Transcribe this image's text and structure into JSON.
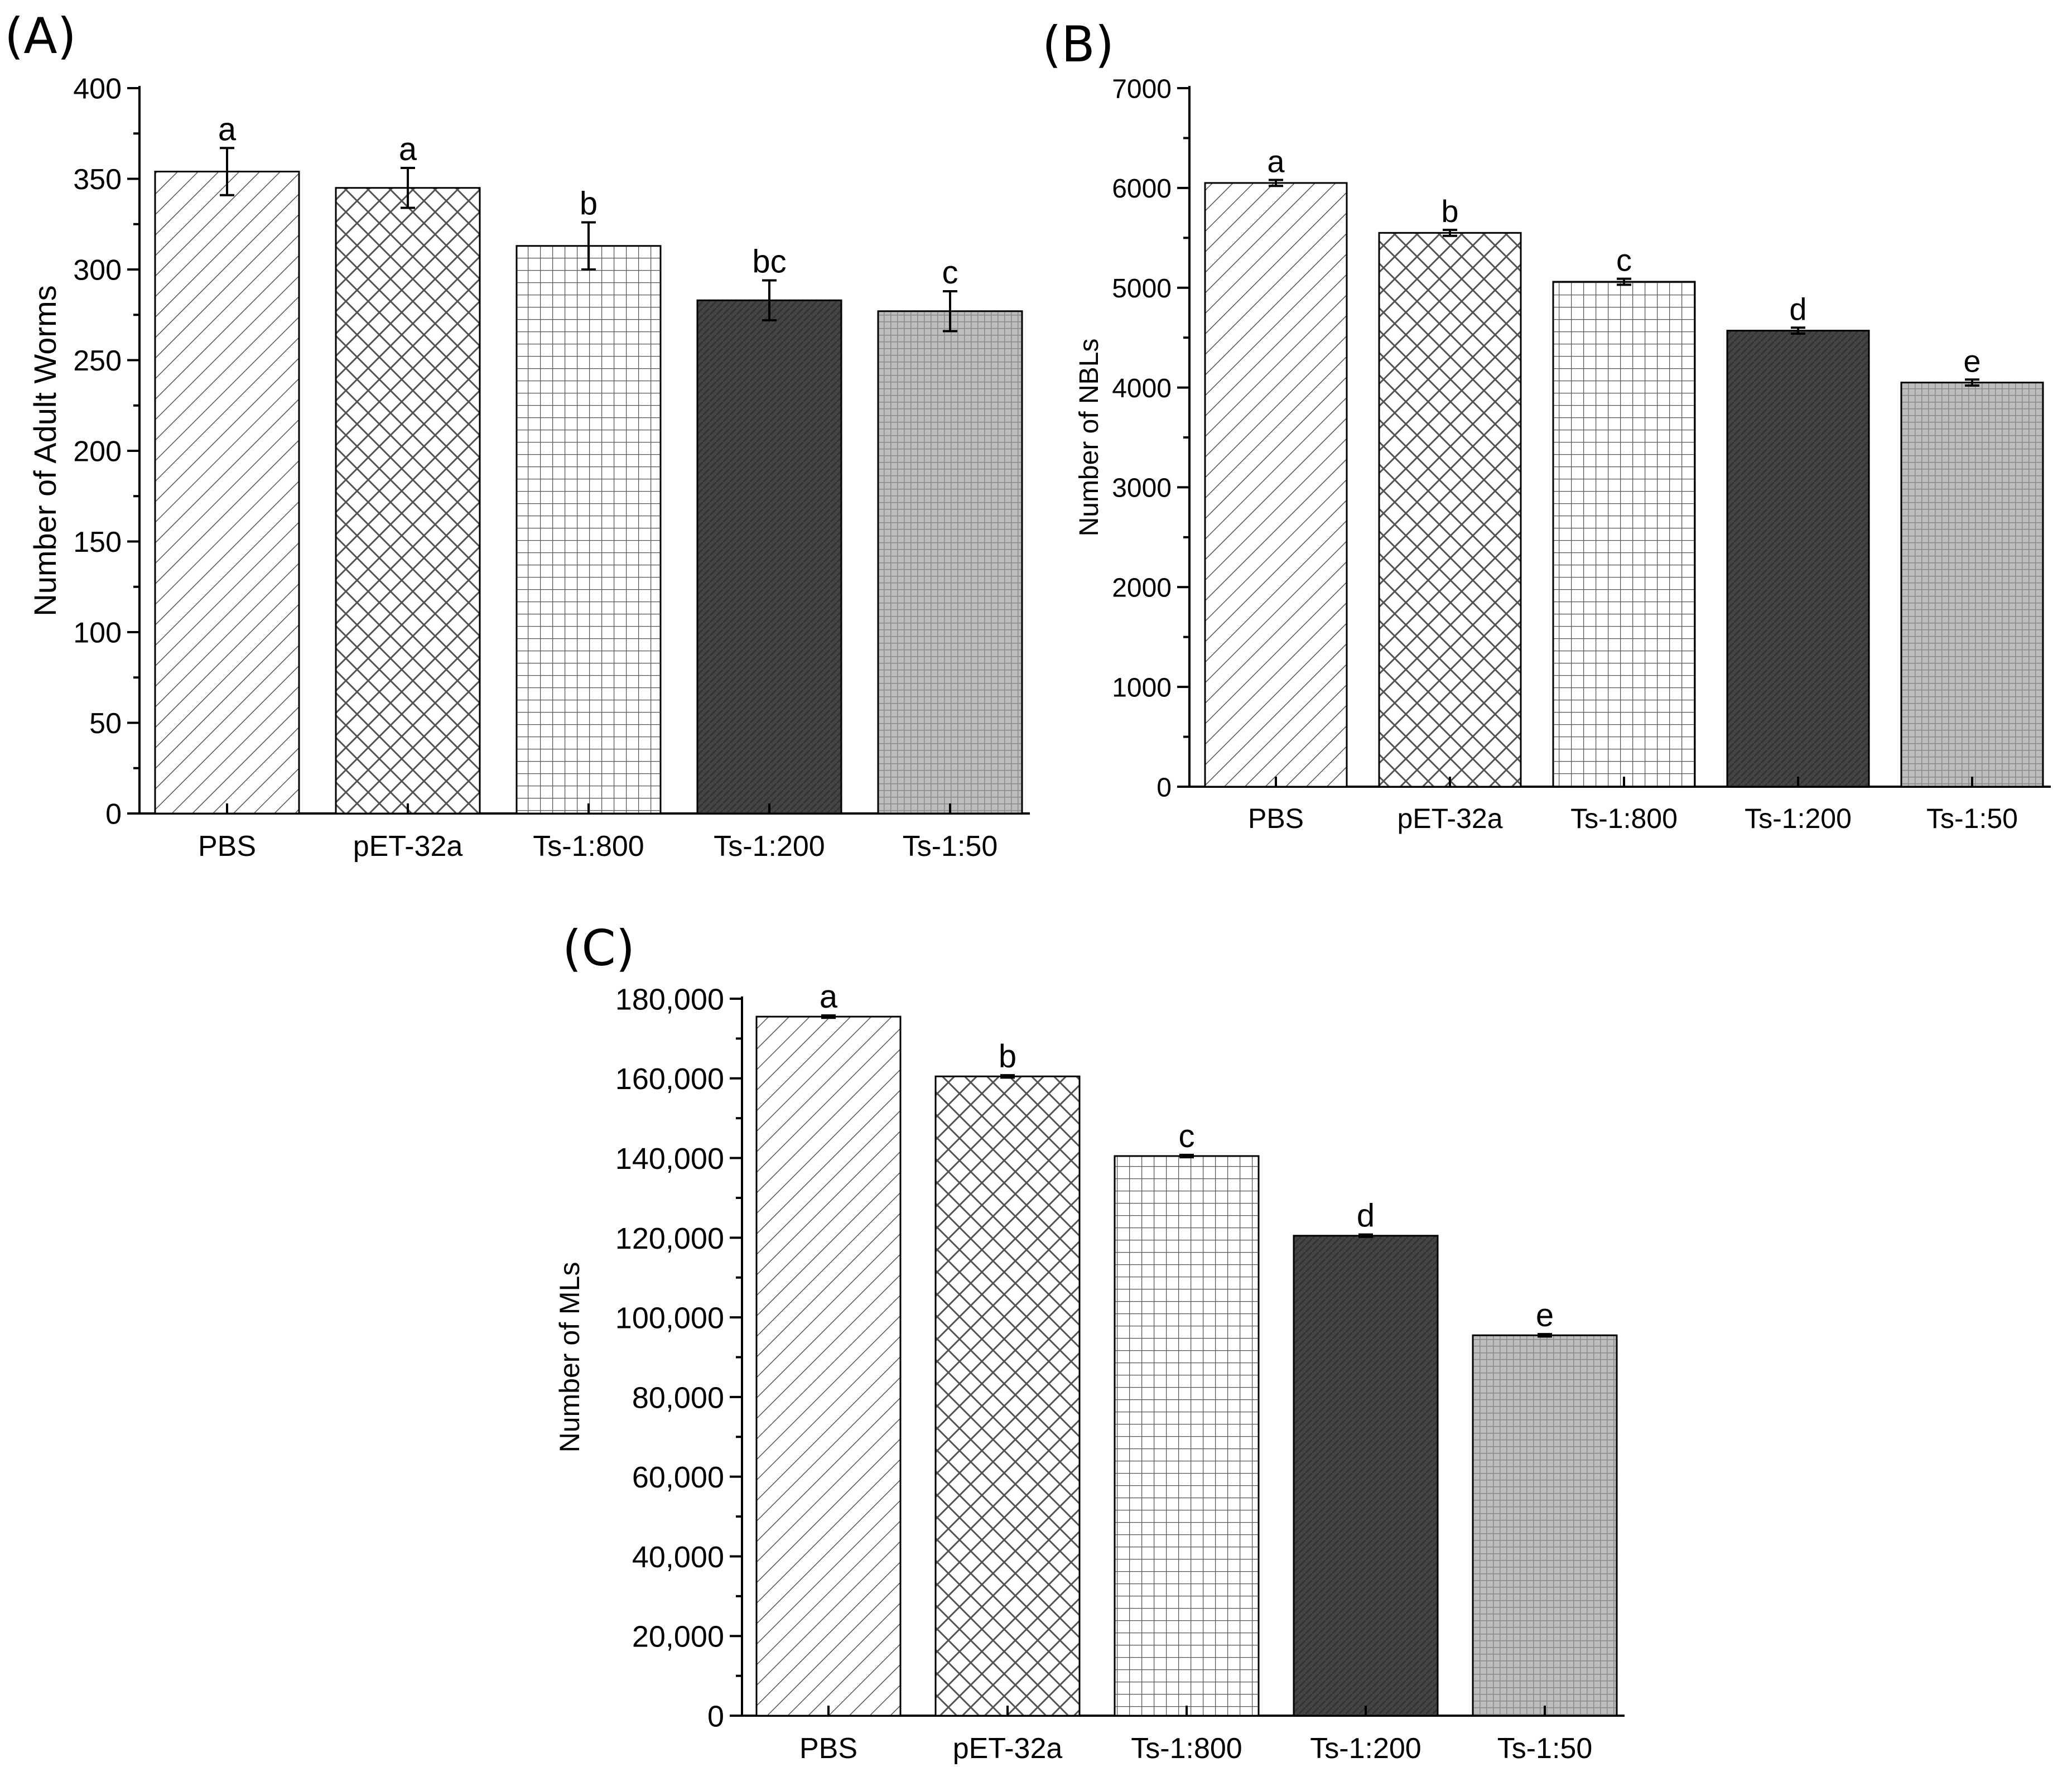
{
  "figure": {
    "panels": [
      {
        "label": "(A)"
      },
      {
        "label": "(B)"
      },
      {
        "label": "(C)"
      }
    ]
  },
  "chart_data": [
    {
      "type": "bar",
      "title": "",
      "xlabel": "",
      "ylabel": "Number of Adult Worms",
      "categories": [
        "PBS",
        "pET-32a",
        "Ts-1:800",
        "Ts-1:200",
        "Ts-1:50"
      ],
      "values": [
        354,
        345,
        313,
        283,
        277
      ],
      "errors": [
        13,
        11,
        13,
        11,
        11
      ],
      "significance": [
        "a",
        "a",
        "b",
        "bc",
        "c"
      ],
      "ylim": [
        0,
        400
      ],
      "yticks": [
        0,
        50,
        100,
        150,
        200,
        250,
        300,
        350,
        400
      ],
      "ytick_labels": [
        "0",
        "50",
        "100",
        "150",
        "200",
        "250",
        "300",
        "350",
        "400"
      ],
      "patterns": [
        "diag",
        "cross",
        "grid",
        "dark",
        "mesh"
      ]
    },
    {
      "type": "bar",
      "title": "",
      "xlabel": "",
      "ylabel": "Number of NBLs",
      "categories": [
        "PBS",
        "pET-32a",
        "Ts-1:800",
        "Ts-1:200",
        "Ts-1:50"
      ],
      "values": [
        6050,
        5550,
        5060,
        4570,
        4050
      ],
      "errors": [
        30,
        30,
        30,
        30,
        30
      ],
      "significance": [
        "a",
        "b",
        "c",
        "d",
        "e"
      ],
      "ylim": [
        0,
        7000
      ],
      "yticks": [
        0,
        1000,
        2000,
        3000,
        4000,
        5000,
        6000,
        7000
      ],
      "ytick_labels": [
        "0",
        "1000",
        "2000",
        "3000",
        "4000",
        "5000",
        "6000",
        "7000"
      ],
      "patterns": [
        "diag",
        "cross",
        "grid",
        "dark",
        "mesh"
      ]
    },
    {
      "type": "bar",
      "title": "",
      "xlabel": "",
      "ylabel": "Number of MLs",
      "categories": [
        "PBS",
        "pET-32a",
        "Ts-1:800",
        "Ts-1:200",
        "Ts-1:50"
      ],
      "values": [
        175500,
        160500,
        140500,
        120500,
        95500
      ],
      "errors": [
        300,
        300,
        300,
        300,
        300
      ],
      "significance": [
        "a",
        "b",
        "c",
        "d",
        "e"
      ],
      "ylim": [
        0,
        180000
      ],
      "yticks": [
        0,
        20000,
        40000,
        60000,
        80000,
        100000,
        120000,
        140000,
        160000,
        180000
      ],
      "ytick_labels": [
        "0",
        "20,000",
        "40,000",
        "60,000",
        "80,000",
        "100,000",
        "120,000",
        "140,000",
        "160,000",
        "180,000"
      ],
      "patterns": [
        "diag",
        "cross",
        "grid",
        "dark",
        "mesh"
      ]
    }
  ]
}
